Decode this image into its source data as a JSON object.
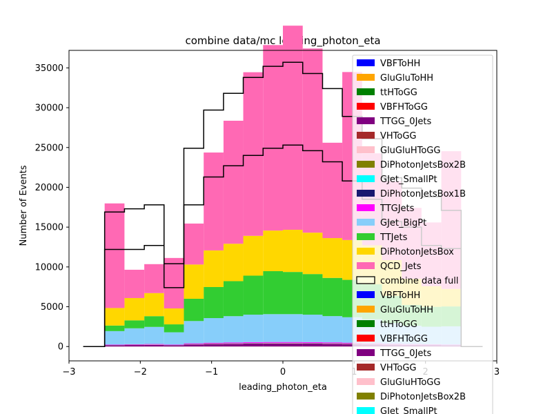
{
  "chart_data": {
    "type": "bar",
    "title": "combine data/mc leading_photon_eta",
    "xlabel": "leading_photon_eta",
    "ylabel": "Number of Events",
    "xlim": [
      -3,
      3
    ],
    "ylim": [
      -1800,
      37200
    ],
    "grid": false,
    "legend_position": "right",
    "x_ticks": [
      -3,
      -2,
      -1,
      0,
      1,
      2,
      3
    ],
    "y_ticks": [
      0,
      5000,
      10000,
      15000,
      20000,
      25000,
      30000,
      35000
    ],
    "bin_edges": [
      -2.5,
      -2.222,
      -1.944,
      -1.667,
      -1.389,
      -1.111,
      -0.833,
      -0.556,
      -0.278,
      0.0,
      0.278,
      0.556,
      0.833,
      1.111,
      1.389,
      1.667,
      1.944,
      2.222,
      2.5
    ],
    "stack": [
      {
        "name": "VBFToHH",
        "color": "#0000ff",
        "values": [
          0,
          0,
          0,
          0,
          0,
          0,
          0,
          0,
          0,
          0,
          0,
          0,
          0,
          0,
          0,
          0,
          0,
          0
        ]
      },
      {
        "name": "GluGluToHH",
        "color": "#ffa500",
        "values": [
          0,
          0,
          0,
          0,
          0,
          0,
          0,
          0,
          0,
          0,
          0,
          0,
          0,
          0,
          0,
          0,
          0,
          0
        ]
      },
      {
        "name": "ttHToGG",
        "color": "#008000",
        "values": [
          2,
          3,
          3,
          2,
          4,
          5,
          5,
          6,
          6,
          6,
          6,
          5,
          5,
          4,
          3,
          3,
          3,
          2
        ]
      },
      {
        "name": "VBFHToGG",
        "color": "#ff0000",
        "values": [
          3,
          4,
          4,
          3,
          5,
          6,
          7,
          7,
          7,
          7,
          7,
          6,
          6,
          5,
          4,
          4,
          4,
          3
        ]
      },
      {
        "name": "TTGG_0Jets",
        "color": "#800080",
        "values": [
          150,
          180,
          200,
          150,
          250,
          300,
          320,
          350,
          360,
          360,
          350,
          330,
          300,
          260,
          220,
          200,
          180,
          150
        ]
      },
      {
        "name": "VHToGG",
        "color": "#a52a2a",
        "values": [
          3,
          4,
          4,
          3,
          5,
          6,
          6,
          7,
          7,
          7,
          7,
          6,
          6,
          5,
          4,
          4,
          4,
          3
        ]
      },
      {
        "name": "GluGluHToGG",
        "color": "#ffc0cb",
        "values": [
          20,
          25,
          25,
          20,
          35,
          40,
          45,
          48,
          50,
          50,
          48,
          45,
          40,
          35,
          30,
          25,
          25,
          20
        ]
      },
      {
        "name": "DiPhotonJetsBox2B",
        "color": "#808000",
        "values": [
          5,
          6,
          6,
          5,
          8,
          9,
          10,
          10,
          11,
          11,
          10,
          10,
          9,
          8,
          7,
          6,
          6,
          5
        ]
      },
      {
        "name": "GJet_SmallPt",
        "color": "#00ffff",
        "values": [
          0,
          0,
          0,
          0,
          0,
          0,
          0,
          0,
          0,
          0,
          0,
          0,
          0,
          0,
          0,
          0,
          0,
          0
        ]
      },
      {
        "name": "DiPhotonJetsBox1B",
        "color": "#191970",
        "values": [
          15,
          18,
          18,
          15,
          25,
          28,
          30,
          32,
          32,
          32,
          32,
          30,
          28,
          25,
          20,
          18,
          18,
          15
        ]
      },
      {
        "name": "TTGJets",
        "color": "#ff00ff",
        "values": [
          40,
          50,
          55,
          40,
          70,
          80,
          90,
          95,
          95,
          95,
          95,
          90,
          85,
          75,
          65,
          55,
          50,
          40
        ]
      },
      {
        "name": "GJet_BigPt",
        "color": "#87cefa",
        "values": [
          1700,
          2000,
          2150,
          1550,
          2800,
          3100,
          3300,
          3450,
          3500,
          3500,
          3450,
          3300,
          3200,
          3000,
          2600,
          2300,
          2200,
          2300
        ]
      },
      {
        "name": "TTJets",
        "color": "#32cd32",
        "values": [
          700,
          1000,
          1350,
          1000,
          2800,
          3900,
          4400,
          4900,
          5400,
          5300,
          5100,
          4800,
          4700,
          4400,
          3400,
          2600,
          2500,
          2500
        ]
      },
      {
        "name": "DiPhotonJetsBox",
        "color": "#ffd700",
        "values": [
          2200,
          2800,
          2900,
          2000,
          4300,
          4600,
          4700,
          5000,
          5100,
          5300,
          5200,
          5000,
          5000,
          4900,
          4500,
          3300,
          2600,
          2200
        ]
      },
      {
        "name": "QCD_Jets",
        "color": "#ff69b4",
        "values": [
          13140,
          3555,
          3635,
          6337,
          5145,
          12295,
          15450,
          20550,
          23300,
          25635,
          23130,
          11978,
          21100,
          11550,
          9900,
          8900,
          8000,
          17300
        ]
      }
    ],
    "data_series": {
      "name": "combine data full",
      "color": "#000000",
      "fill": "#ffffe0",
      "edges": [
        -2.8,
        -2.5,
        -2.222,
        -1.944,
        -1.667,
        -1.389,
        -1.111,
        -0.833,
        -0.556,
        -0.278,
        0.0,
        0.278,
        0.556,
        0.833,
        1.111,
        1.389,
        1.667,
        1.944,
        2.222,
        2.5,
        2.8
      ],
      "lower": [
        0,
        12200,
        12200,
        12700,
        7400,
        17800,
        21300,
        22700,
        24000,
        24900,
        25300,
        24600,
        23200,
        20800,
        18500,
        15700,
        15000,
        12700,
        12300,
        0
      ],
      "upper": [
        0,
        16900,
        17300,
        17800,
        10400,
        24900,
        29700,
        31800,
        33800,
        35200,
        35700,
        34300,
        32400,
        28900,
        26100,
        21200,
        19900,
        18800,
        17100,
        0
      ]
    },
    "legend_entries": [
      {
        "label": "VBFToHH",
        "color": "#0000ff"
      },
      {
        "label": "GluGluToHH",
        "color": "#ffa500"
      },
      {
        "label": "ttHToGG",
        "color": "#008000"
      },
      {
        "label": "VBFHToGG",
        "color": "#ff0000"
      },
      {
        "label": "TTGG_0Jets",
        "color": "#800080"
      },
      {
        "label": "VHToGG",
        "color": "#a52a2a"
      },
      {
        "label": "GluGluHToGG",
        "color": "#ffc0cb"
      },
      {
        "label": "DiPhotonJetsBox2B",
        "color": "#808000"
      },
      {
        "label": "GJet_SmallPt",
        "color": "#00ffff"
      },
      {
        "label": "DiPhotonJetsBox1B",
        "color": "#191970"
      },
      {
        "label": "TTGJets",
        "color": "#ff00ff"
      },
      {
        "label": "GJet_BigPt",
        "color": "#87cefa"
      },
      {
        "label": "TTJets",
        "color": "#32cd32"
      },
      {
        "label": "DiPhotonJetsBox",
        "color": "#ffd700"
      },
      {
        "label": "QCD_Jets",
        "color": "#ff69b4"
      },
      {
        "label": "combine data full",
        "color": "#ffffe0",
        "edge": "#000000"
      },
      {
        "label": "VBFToHH",
        "color": "#0000ff"
      },
      {
        "label": "GluGluToHH",
        "color": "#ffa500"
      },
      {
        "label": "ttHToGG",
        "color": "#008000"
      },
      {
        "label": "VBFHToGG",
        "color": "#ff0000"
      },
      {
        "label": "TTGG_0Jets",
        "color": "#800080"
      },
      {
        "label": "VHToGG",
        "color": "#a52a2a"
      },
      {
        "label": "GluGluHToGG",
        "color": "#ffc0cb"
      },
      {
        "label": "DiPhotonJetsBox2B",
        "color": "#808000"
      },
      {
        "label": "GJet_SmallPt",
        "color": "#00ffff"
      }
    ]
  }
}
